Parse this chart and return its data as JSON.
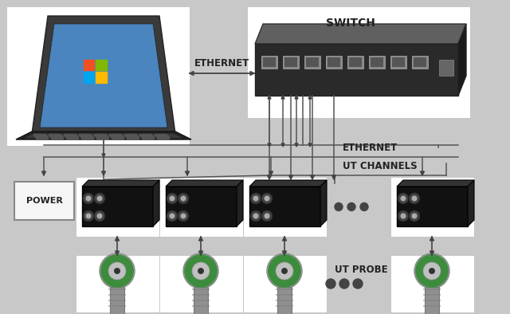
{
  "background_color": "#c8c8c8",
  "figsize": [
    6.4,
    3.94
  ],
  "dpi": 100,
  "text_ethernet_top": "ETHERNET",
  "text_switch": "SWITCH",
  "text_ethernet_right": "ETHERNET",
  "text_ut_channels": "UT CHANNELS",
  "text_ut_probe": "UT PROBE",
  "text_power": "POWER",
  "arrow_color": "#444444",
  "line_color": "#555555",
  "channel_color": "#1a1a1a",
  "channel_border": "#000000",
  "power_face": "#f5f5f5",
  "power_edge": "#888888",
  "switch_dark": "#2a2a2a",
  "switch_port_color": "#888888",
  "probe_body": "#909090",
  "probe_green": "#3d8c3d",
  "probe_tip": "#707070",
  "probe_stem": "#808080",
  "dots_color": "#444444",
  "white_box": "#ffffff",
  "font_bold": "bold",
  "fs_label": 8.5,
  "fs_power": 8,
  "fs_switch": 10
}
